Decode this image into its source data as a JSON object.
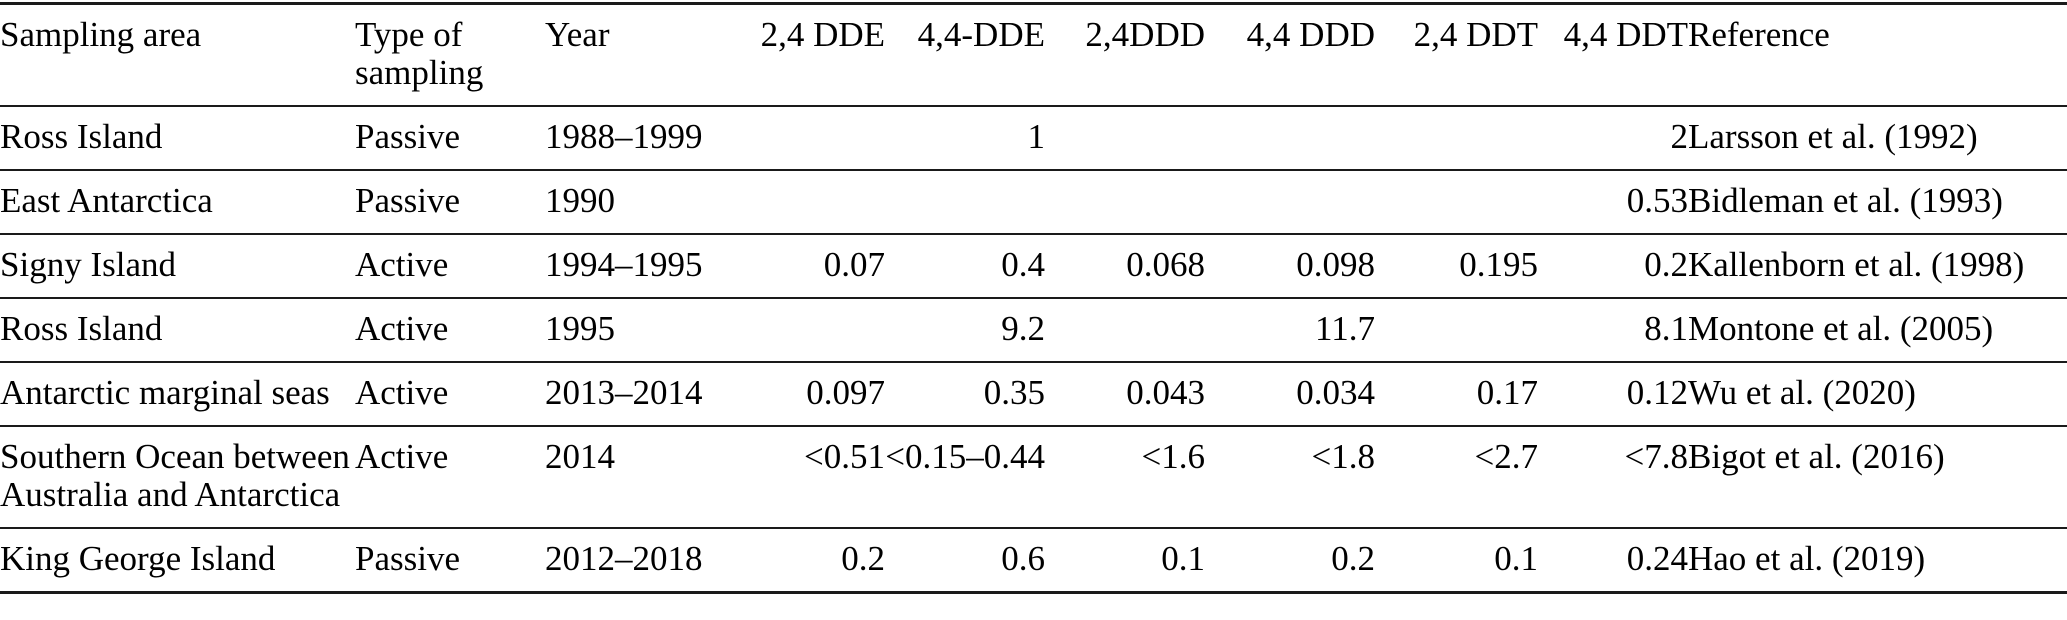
{
  "table": {
    "title": "DDT compound concentrations by Antarctic sampling area",
    "columns": [
      {
        "label": "Sampling area",
        "align": "left"
      },
      {
        "label": "Type of sampling",
        "align": "left"
      },
      {
        "label": "Year",
        "align": "left"
      },
      {
        "label": "2,4 DDE",
        "align": "right"
      },
      {
        "label": "4,4-DDE",
        "align": "right"
      },
      {
        "label": "2,4DDD",
        "align": "right"
      },
      {
        "label": "4,4 DDD",
        "align": "right"
      },
      {
        "label": "2,4 DDT",
        "align": "right"
      },
      {
        "label": "4,4 DDT",
        "align": "right"
      },
      {
        "label": "Reference",
        "align": "left"
      }
    ],
    "rows": [
      [
        "Ross Island",
        "Passive",
        "1988–1999",
        "",
        "1",
        "",
        "",
        "",
        "2",
        "Larsson et al. (1992)"
      ],
      [
        "East Antarctica",
        "Passive",
        "1990",
        "",
        "",
        "",
        "",
        "",
        "0.53",
        "Bidleman et al. (1993)"
      ],
      [
        "Signy Island",
        "Active",
        "1994–1995",
        "0.07",
        "0.4",
        "0.068",
        "0.098",
        "0.195",
        "0.2",
        "Kallenborn et al. (1998)"
      ],
      [
        "Ross Island",
        "Active",
        "1995",
        "",
        "9.2",
        "",
        "11.7",
        "",
        "8.1",
        "Montone et al. (2005)"
      ],
      [
        "Antarctic marginal seas",
        "Active",
        "2013–2014",
        "0.097",
        "0.35",
        "0.043",
        "0.034",
        "0.17",
        "0.12",
        "Wu et al. (2020)"
      ],
      [
        "Southern Ocean between Australia and Antarctica",
        "Active",
        "2014",
        "<0.51",
        "<0.15–0.44",
        "<1.6",
        "<1.8",
        "<2.7",
        "<7.8",
        "Bigot et al. (2016)"
      ],
      [
        "King George Island",
        "Passive",
        "2012–2018",
        "0.2",
        "0.6",
        "0.1",
        "0.2",
        "0.1",
        "0.24",
        "Hao et al. (2019)"
      ]
    ]
  }
}
